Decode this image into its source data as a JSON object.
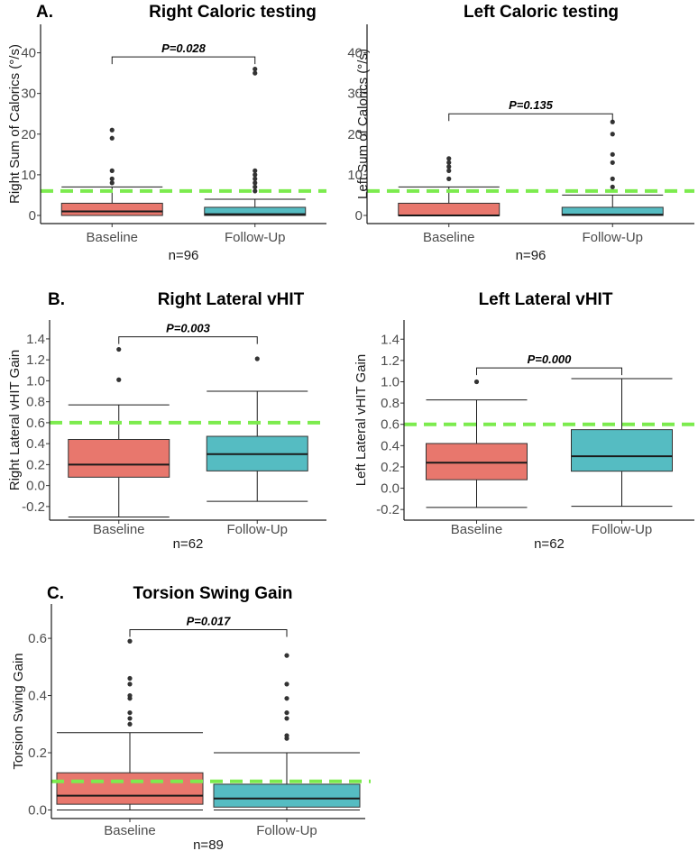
{
  "chart_data": [
    {
      "type": "box",
      "panel_letter": "A.",
      "title": "Right Caloric testing",
      "ylabel": "Right Sum of Calorics (°/s)",
      "xlabel": "n=96",
      "categories": [
        "Baseline",
        "Follow-Up"
      ],
      "ylim": [
        -2,
        47
      ],
      "yticks": [
        0,
        10,
        20,
        30,
        40
      ],
      "tick_labels": [
        "0",
        "10",
        "20",
        "30",
        "40"
      ],
      "reference_line": 6,
      "p_value": "P=0.028",
      "bracket_y": 39,
      "series": [
        {
          "name": "Baseline",
          "color": "#E8776D",
          "min": 0,
          "q1": 0,
          "median": 1,
          "q3": 3,
          "max": 7,
          "outliers": [
            8,
            9,
            11,
            19,
            21
          ]
        },
        {
          "name": "Follow-Up",
          "color": "#55BCC2",
          "min": 0,
          "q1": 0,
          "median": 0.3,
          "q3": 2,
          "max": 4,
          "outliers": [
            6,
            7,
            8,
            9,
            10,
            11,
            35,
            36
          ]
        }
      ]
    },
    {
      "type": "box",
      "panel_letter": "",
      "title": "Left Caloric testing",
      "ylabel": "Left Sum of Calorics (°/s)",
      "xlabel": "n=96",
      "categories": [
        "Baseline",
        "Follow-Up"
      ],
      "ylim": [
        -2,
        47
      ],
      "yticks": [
        0,
        10,
        20,
        30,
        40
      ],
      "tick_labels": [
        "0",
        "10",
        "20",
        "30",
        "40"
      ],
      "reference_line": 6,
      "p_value": "P=0.135",
      "bracket_y": 25,
      "series": [
        {
          "name": "Baseline",
          "color": "#E8776D",
          "min": 0,
          "q1": 0,
          "median": 0,
          "q3": 3,
          "max": 7,
          "outliers": [
            9,
            11,
            12,
            13,
            14
          ]
        },
        {
          "name": "Follow-Up",
          "color": "#55BCC2",
          "min": 0,
          "q1": 0,
          "median": 0.2,
          "q3": 2,
          "max": 5,
          "outliers": [
            7,
            9,
            13,
            15,
            20,
            23
          ]
        }
      ]
    },
    {
      "type": "box",
      "panel_letter": "B.",
      "title": "Right Lateral vHIT",
      "ylabel": "Right Lateral vHIT Gain",
      "xlabel": "n=62",
      "categories": [
        "Baseline",
        "Follow-Up"
      ],
      "ylim": [
        -0.33,
        1.58
      ],
      "yticks": [
        -0.2,
        0,
        0.2,
        0.4,
        0.6,
        0.8,
        1.0,
        1.2,
        1.4
      ],
      "tick_labels": [
        "-0.2",
        "0.0",
        "0.2",
        "0.4",
        "0.6",
        "0.8",
        "1.0",
        "1.2",
        "1.4"
      ],
      "reference_line": 0.6,
      "p_value": "P=0.003",
      "bracket_y": 1.42,
      "series": [
        {
          "name": "Baseline",
          "color": "#E8776D",
          "min": -0.3,
          "q1": 0.08,
          "median": 0.2,
          "q3": 0.44,
          "max": 0.77,
          "outliers": [
            1.01,
            1.3
          ]
        },
        {
          "name": "Follow-Up",
          "color": "#55BCC2",
          "min": -0.15,
          "q1": 0.14,
          "median": 0.3,
          "q3": 0.47,
          "max": 0.9,
          "outliers": [
            1.21
          ]
        }
      ]
    },
    {
      "type": "box",
      "panel_letter": "",
      "title": "Left Lateral vHIT",
      "ylabel": "Left Lateral vHIT Gain",
      "xlabel": "n=62",
      "categories": [
        "Baseline",
        "Follow-Up"
      ],
      "ylim": [
        -0.3,
        1.58
      ],
      "yticks": [
        -0.2,
        0,
        0.2,
        0.4,
        0.6,
        0.8,
        1.0,
        1.2,
        1.4
      ],
      "tick_labels": [
        "-0.2",
        "0.0",
        "0.2",
        "0.4",
        "0.6",
        "0.8",
        "1.0",
        "1.2",
        "1.4"
      ],
      "reference_line": 0.6,
      "p_value": "P=0.000",
      "bracket_y": 1.13,
      "series": [
        {
          "name": "Baseline",
          "color": "#E8776D",
          "min": -0.18,
          "q1": 0.08,
          "median": 0.24,
          "q3": 0.42,
          "max": 0.83,
          "outliers": [
            1.0
          ]
        },
        {
          "name": "Follow-Up",
          "color": "#55BCC2",
          "min": -0.17,
          "q1": 0.16,
          "median": 0.3,
          "q3": 0.55,
          "max": 1.03,
          "outliers": []
        }
      ]
    },
    {
      "type": "box",
      "panel_letter": "C.",
      "title": "Torsion Swing Gain",
      "ylabel": "Torsion Swing Gain",
      "xlabel": "n=89",
      "categories": [
        "Baseline",
        "Follow-Up"
      ],
      "ylim": [
        -0.03,
        0.72
      ],
      "yticks": [
        0,
        0.2,
        0.4,
        0.6
      ],
      "tick_labels": [
        "0.0",
        "0.2",
        "0.4",
        "0.6"
      ],
      "reference_line": 0.1,
      "p_value": "P=0.017",
      "bracket_y": 0.63,
      "series": [
        {
          "name": "Baseline",
          "color": "#E8776D",
          "min": 0.0,
          "q1": 0.02,
          "median": 0.05,
          "q3": 0.13,
          "max": 0.27,
          "outliers": [
            0.3,
            0.32,
            0.34,
            0.39,
            0.4,
            0.44,
            0.46,
            0.59
          ]
        },
        {
          "name": "Follow-Up",
          "color": "#55BCC2",
          "min": 0.0,
          "q1": 0.01,
          "median": 0.04,
          "q3": 0.09,
          "max": 0.2,
          "outliers": [
            0.25,
            0.26,
            0.32,
            0.34,
            0.39,
            0.44,
            0.54
          ]
        }
      ]
    }
  ]
}
